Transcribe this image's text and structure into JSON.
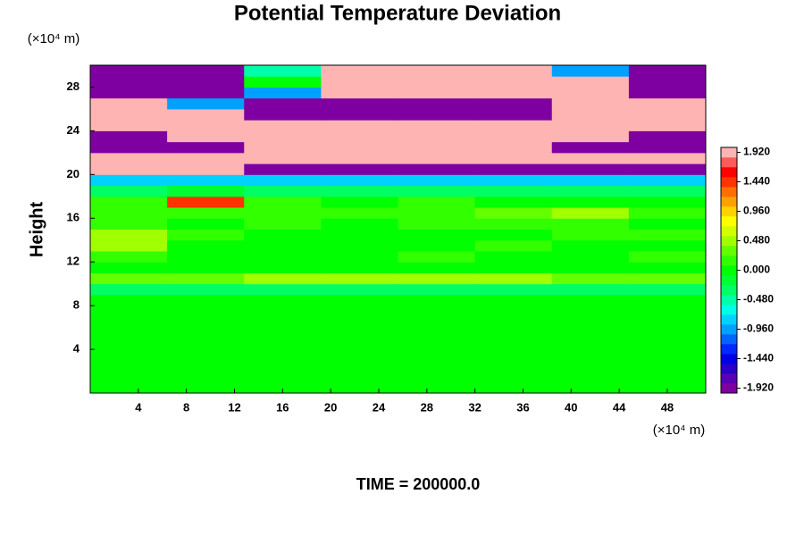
{
  "chart_data": {
    "type": "contour",
    "title": "Potential Temperature Deviation",
    "y_label": "Height",
    "x_unit": "(×10⁴ m)",
    "y_unit": "(×10⁴ m)",
    "annotation": "TIME = 200000.0",
    "xlim": [
      0,
      51.2
    ],
    "ylim": [
      0,
      30
    ],
    "xticks": [
      4,
      8,
      12,
      16,
      20,
      24,
      28,
      32,
      36,
      40,
      44,
      48
    ],
    "yticks": [
      4,
      8,
      12,
      16,
      20,
      24,
      28
    ],
    "x": [
      3.2,
      9.6,
      16,
      22.4,
      28.8,
      35.2,
      41.6,
      48
    ],
    "y": [
      0.5,
      1.5,
      2.5,
      3.5,
      4.5,
      5.5,
      6.5,
      7.5,
      8.5,
      9.5,
      10.5,
      11.5,
      12.5,
      13.5,
      14.5,
      15.5,
      16.5,
      17.5,
      18.5,
      19.5,
      20.5,
      21.5,
      22.5,
      23.5,
      24.5,
      25.5,
      26.5,
      27.5,
      28.5,
      29.5
    ],
    "z": [
      [
        0,
        0,
        0,
        0,
        0,
        0,
        0,
        0
      ],
      [
        0,
        0,
        0,
        0,
        0,
        0,
        0,
        0
      ],
      [
        0,
        0,
        0,
        0,
        0,
        0,
        0,
        0
      ],
      [
        0,
        0,
        0,
        0,
        0,
        0,
        0,
        0
      ],
      [
        0,
        0,
        0,
        0,
        0,
        0,
        0,
        0
      ],
      [
        0,
        0,
        0,
        0,
        0,
        0,
        0,
        0
      ],
      [
        0,
        0,
        0,
        0,
        0,
        0,
        0,
        0
      ],
      [
        0,
        0,
        0,
        0,
        0,
        0,
        0,
        0
      ],
      [
        0,
        0,
        0,
        0,
        0,
        0,
        0,
        0
      ],
      [
        -0.3,
        -0.3,
        -0.3,
        -0.3,
        -0.3,
        -0.3,
        -0.3,
        -0.3
      ],
      [
        0.3,
        0.3,
        0.4,
        0.4,
        0.5,
        0.4,
        0.3,
        0.3
      ],
      [
        0,
        0,
        0,
        0,
        0,
        0,
        0,
        0
      ],
      [
        0.1,
        0,
        0,
        0,
        0.1,
        0,
        0,
        0.1
      ],
      [
        0.5,
        0,
        0,
        0,
        0,
        0.1,
        0,
        0
      ],
      [
        0.5,
        0.1,
        0,
        0,
        0,
        0,
        0.1,
        0.1
      ],
      [
        0.1,
        0,
        0.1,
        0,
        0.1,
        0.2,
        0.1,
        0
      ],
      [
        0.1,
        0.1,
        0.1,
        0.1,
        0.2,
        0.3,
        0.4,
        0.1
      ],
      [
        0.1,
        1.4,
        0.1,
        0,
        0.1,
        0,
        0,
        0
      ],
      [
        -0.3,
        -0.2,
        -0.3,
        -0.3,
        -0.3,
        -0.3,
        -0.3,
        -0.3
      ],
      [
        -0.8,
        -0.8,
        -0.8,
        -0.8,
        -0.8,
        -0.8,
        -0.8,
        -0.8
      ],
      [
        2,
        2,
        -2,
        -2,
        -2,
        -2,
        -2,
        -2
      ],
      [
        2,
        2,
        2,
        2,
        2,
        2,
        2,
        2
      ],
      [
        -2,
        -2,
        2,
        2,
        2,
        2,
        -2,
        -2
      ],
      [
        -2,
        2,
        2,
        2,
        2,
        2,
        2,
        -2
      ],
      [
        2,
        2,
        2,
        2,
        2,
        2,
        2,
        2
      ],
      [
        2,
        2,
        -2,
        -2,
        -2,
        -2,
        2,
        2
      ],
      [
        2,
        -1,
        -2,
        -2,
        -2,
        -2,
        2,
        2
      ],
      [
        -2,
        -2,
        -1,
        2,
        2,
        2,
        2,
        -2
      ],
      [
        -2,
        -2,
        0,
        2,
        2,
        2,
        2,
        -2
      ],
      [
        -2,
        -2,
        -0.5,
        2,
        2,
        2,
        -1,
        -2
      ]
    ],
    "clim": [
      -2,
      2
    ],
    "colors": [
      "#7f00a0",
      "#5a00b4",
      "#2800c8",
      "#0000e6",
      "#0028ff",
      "#0064ff",
      "#00a0ff",
      "#00d2ff",
      "#00ffe6",
      "#00ffaa",
      "#00ff64",
      "#00ff32",
      "#00ff00",
      "#32ff00",
      "#64ff00",
      "#a0ff00",
      "#d2ff00",
      "#ffff00",
      "#ffd200",
      "#ffa000",
      "#ff6e00",
      "#ff3200",
      "#ff0000",
      "#ff5a5a",
      "#ffb4b4"
    ],
    "colorbar_ticks": [
      {
        "value": 1.92,
        "label": "1.920"
      },
      {
        "value": 1.44,
        "label": "1.440"
      },
      {
        "value": 0.96,
        "label": "0.960"
      },
      {
        "value": 0.48,
        "label": "0.480"
      },
      {
        "value": 0,
        "label": "0.000"
      },
      {
        "value": -0.48,
        "label": "-0.480"
      },
      {
        "value": -0.96,
        "label": "-0.960"
      },
      {
        "value": -1.44,
        "label": "-1.440"
      },
      {
        "value": -1.92,
        "label": "-1.920"
      }
    ]
  }
}
